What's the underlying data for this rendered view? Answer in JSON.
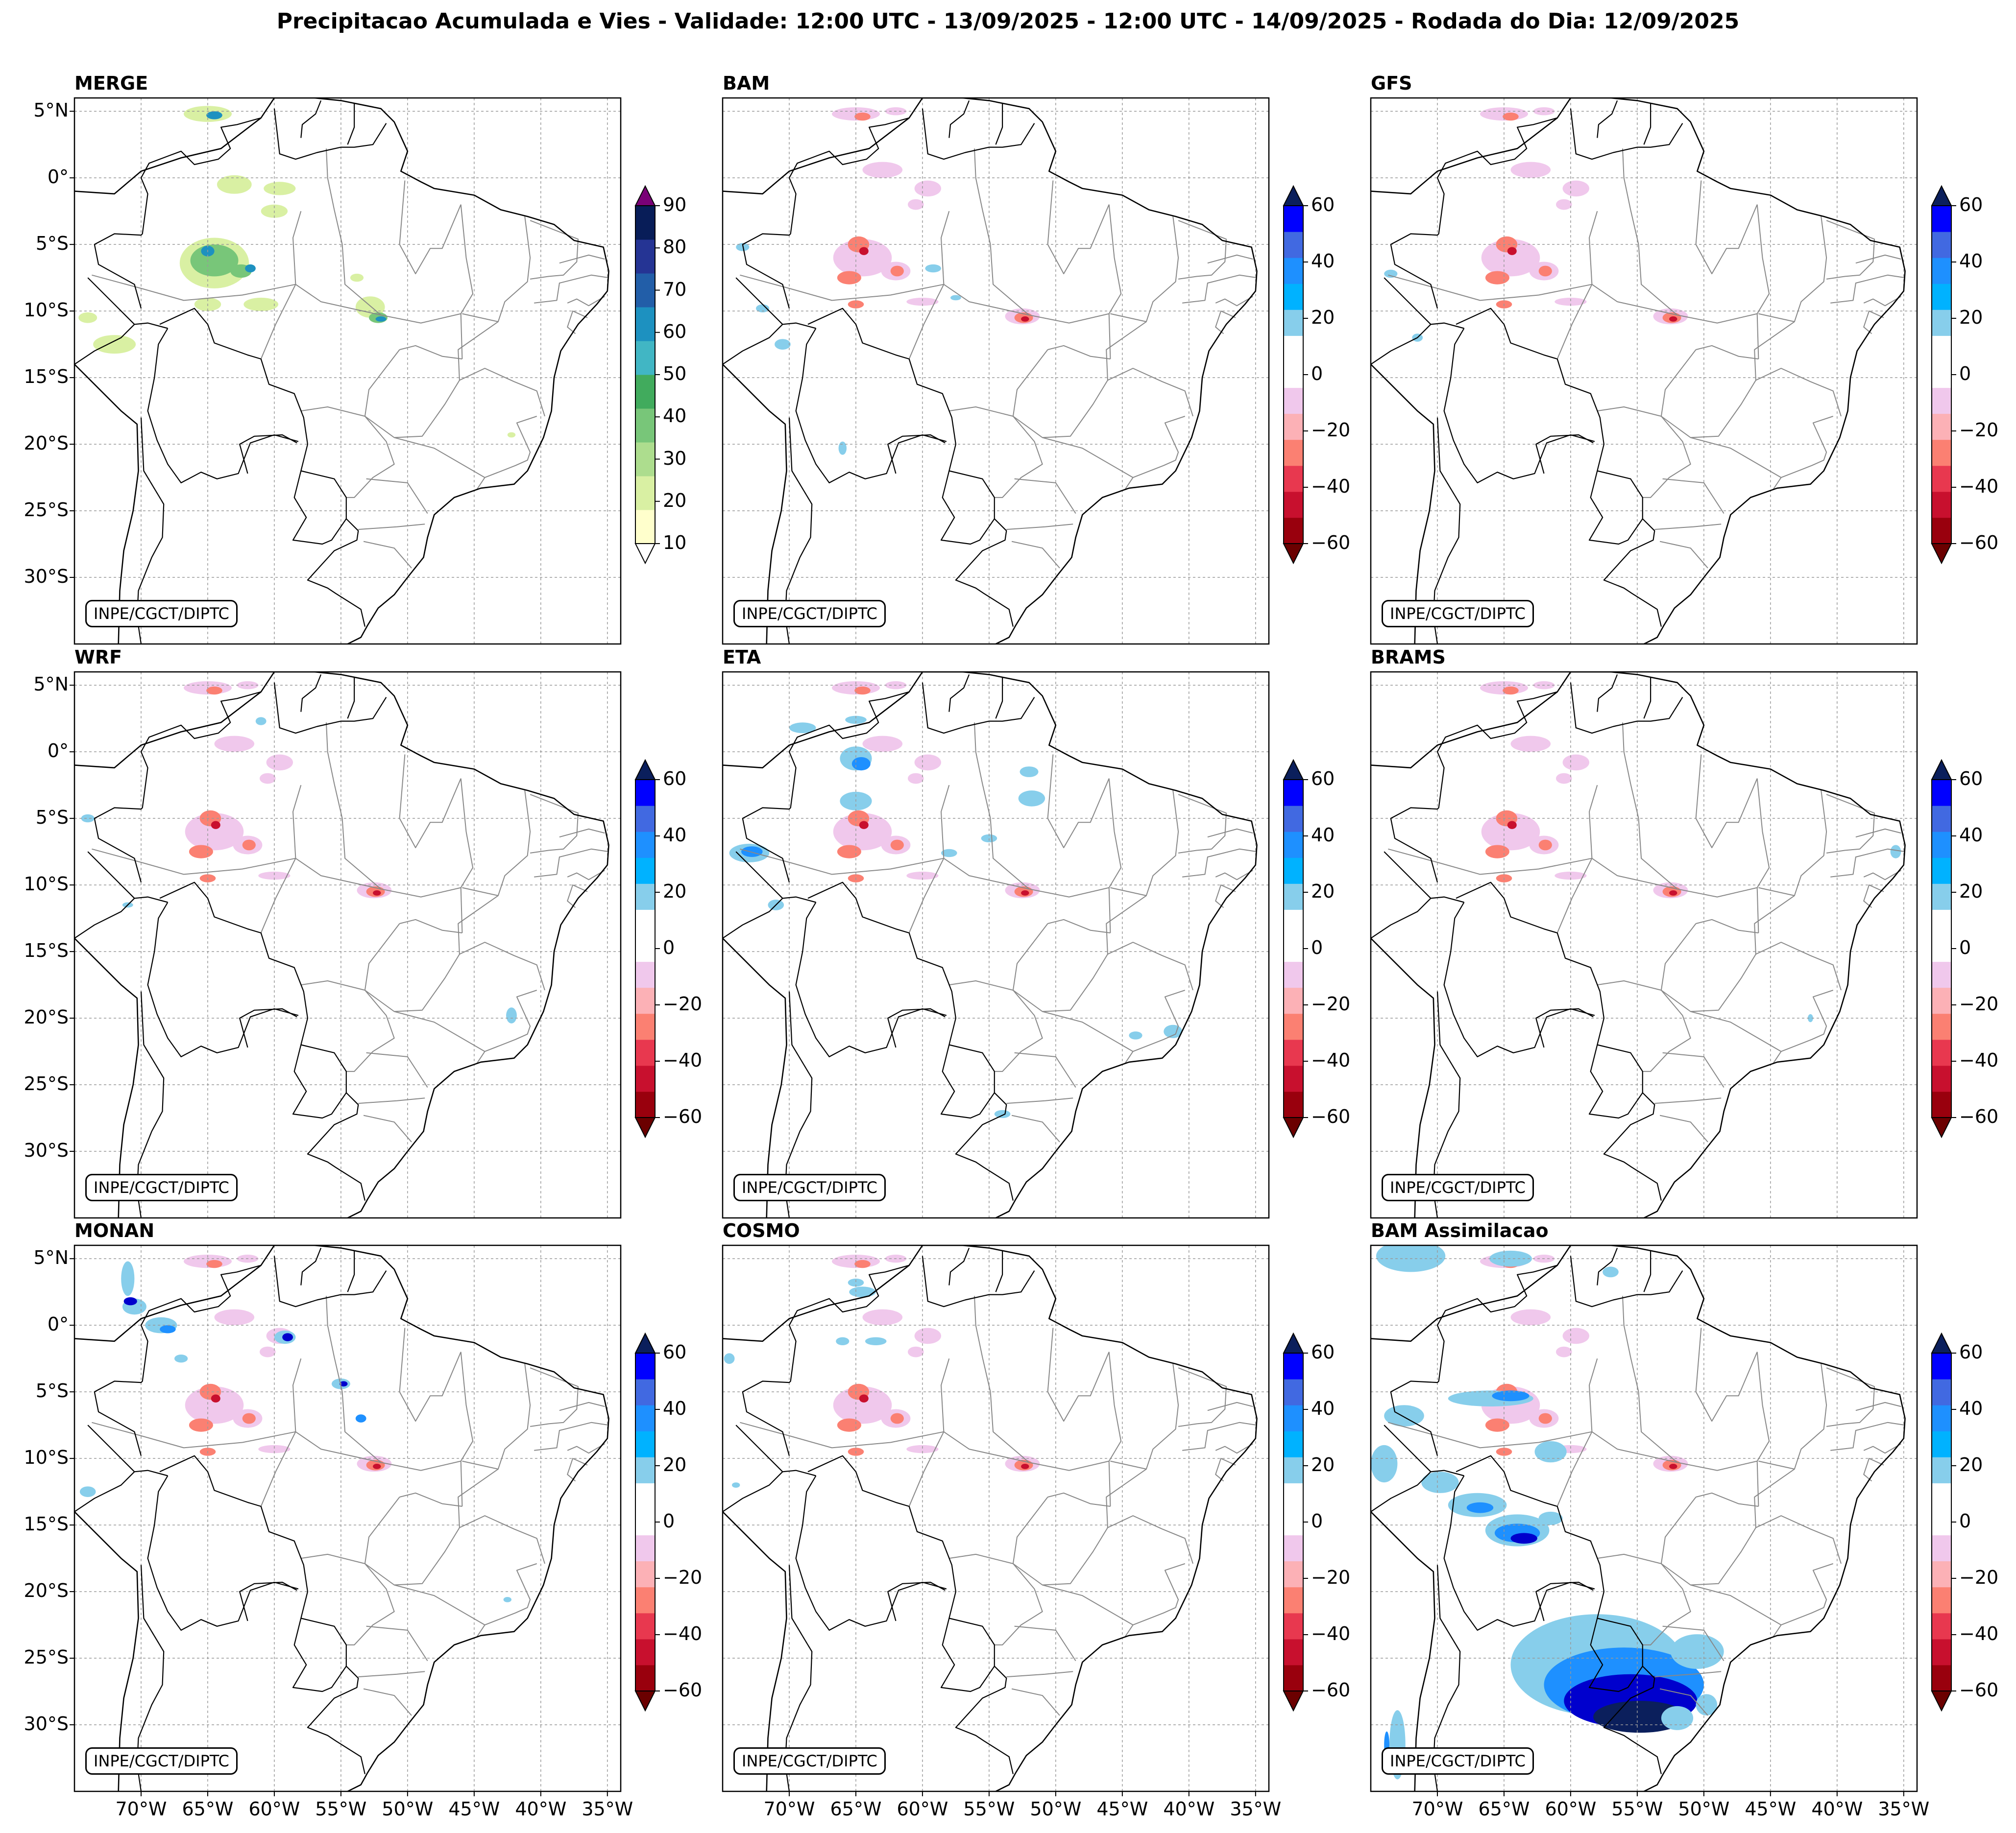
{
  "title": "Precipitacao Acumulada e Vies - Validade: 12:00 UTC - 13/09/2025 - 12:00 UTC - 14/09/2025 - Rodada do Dia: 12/09/2025",
  "credit": "INPE/CGCT/DIPTC",
  "panels": [
    {
      "name": "MERGE",
      "type": "precip"
    },
    {
      "name": "BAM",
      "type": "bias"
    },
    {
      "name": "GFS",
      "type": "bias"
    },
    {
      "name": "WRF",
      "type": "bias"
    },
    {
      "name": "ETA",
      "type": "bias"
    },
    {
      "name": "BRAMS",
      "type": "bias"
    },
    {
      "name": "MONAN",
      "type": "bias"
    },
    {
      "name": "COSMO",
      "type": "bias"
    },
    {
      "name": "BAM Assimilacao",
      "type": "bias"
    }
  ],
  "lat_labels": [
    "5°N",
    "0°",
    "5°S",
    "10°S",
    "15°S",
    "20°S",
    "25°S",
    "30°S"
  ],
  "lon_labels": [
    "70°W",
    "65°W",
    "60°W",
    "55°W",
    "50°W",
    "45°W",
    "40°W",
    "35°W"
  ],
  "precip_colorbar": {
    "ticks": [
      "90",
      "80",
      "70",
      "60",
      "50",
      "40",
      "30",
      "20",
      "10"
    ],
    "colors": [
      "#ffffcc",
      "#d9f0a3",
      "#addd8e",
      "#78c679",
      "#41ab5d",
      "#41b6c4",
      "#1d91c0",
      "#225ea8",
      "#253494",
      "#081d58"
    ],
    "over_color": "#7a0177",
    "under_color": "#ffffff"
  },
  "bias_colorbar": {
    "ticks": [
      "60",
      "40",
      "20",
      "0",
      "−20",
      "−40",
      "−60"
    ],
    "colors": [
      "#99000d",
      "#c8102e",
      "#e8384f",
      "#fb8072",
      "#fcb1b6",
      "#f0c8ec",
      "#ffffff",
      "#ffffff",
      "#87ceeb",
      "#00b2ff",
      "#1e90ff",
      "#4169e1",
      "#0000ff"
    ],
    "over_color": "#0b1f5c",
    "under_color": "#6b0000"
  },
  "colors": {
    "coast": "#000000",
    "state_border": "#888888",
    "grid": "#999999",
    "wet_blue": "#87ceeb",
    "mid_blue": "#1e90ff",
    "dark_blue": "#0000cd",
    "navy": "#0b1f5c",
    "pink": "#f0c8ec",
    "salmon": "#fb8072",
    "red": "#c8102e",
    "yellow_green": "#d9f0a3",
    "green": "#78c679",
    "teal": "#1d91c0"
  }
}
